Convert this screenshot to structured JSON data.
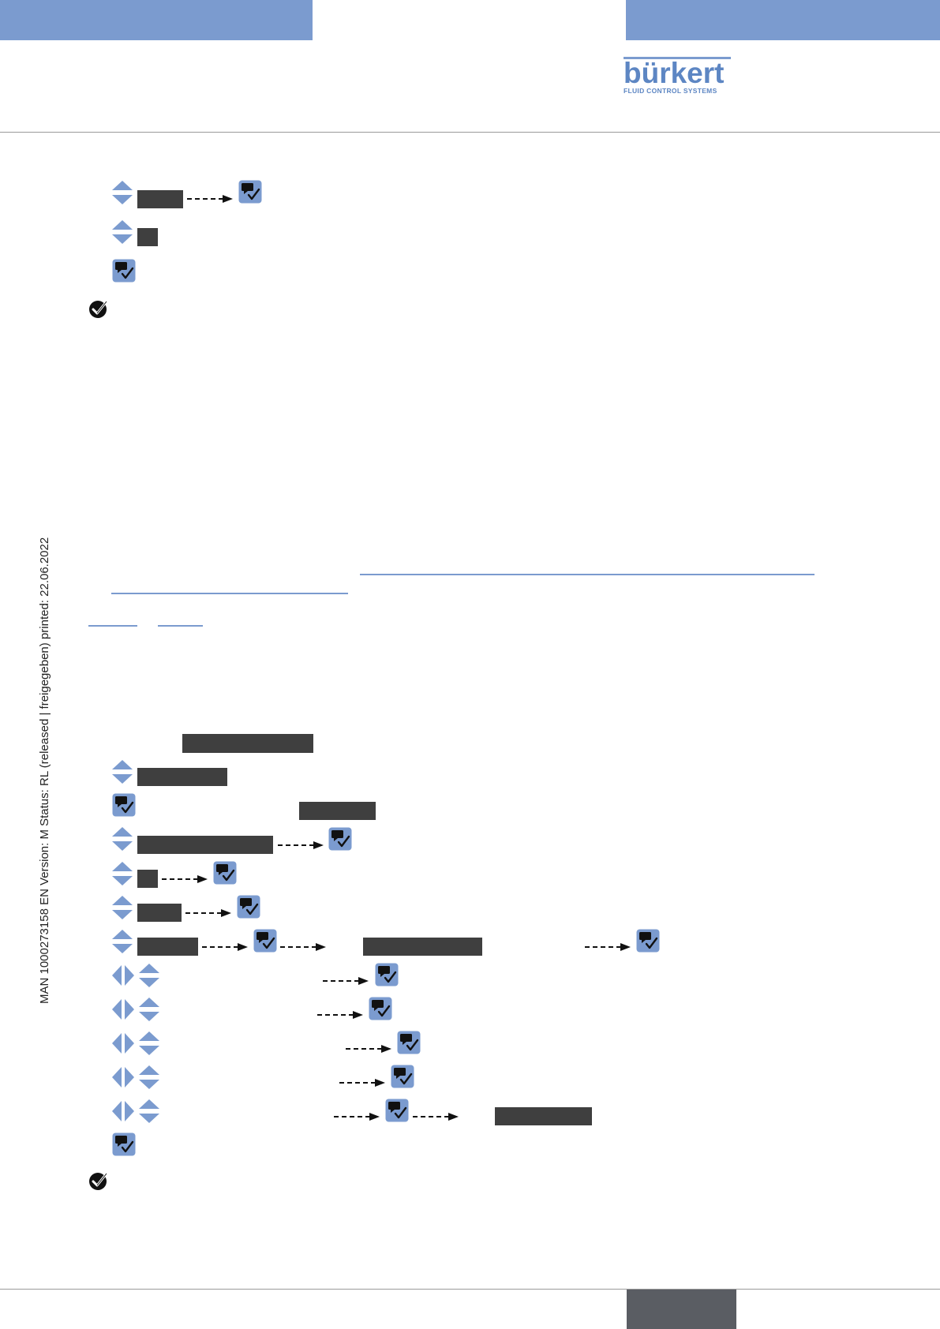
{
  "header": {
    "brand": "bürkert",
    "brand_sub": "FLUID CONTROL SYSTEMS",
    "bar_color": "#7b9bcf"
  },
  "side_note": "MAN  1000273158  EN  Version: M  Status: RL (released | freigegeben)  printed: 22.06.2022",
  "icons": {
    "navigate_updown": "up-down-arrows-icon",
    "navigate_leftright": "left-right-arrows-icon",
    "confirm": "confirm-key-icon",
    "done": "check-circle-icon",
    "flow": "dashed-arrow-icon"
  },
  "colors": {
    "accent": "#7b9bcf",
    "display_box": "#3f3f3f",
    "footer_box": "#5a5d63"
  }
}
